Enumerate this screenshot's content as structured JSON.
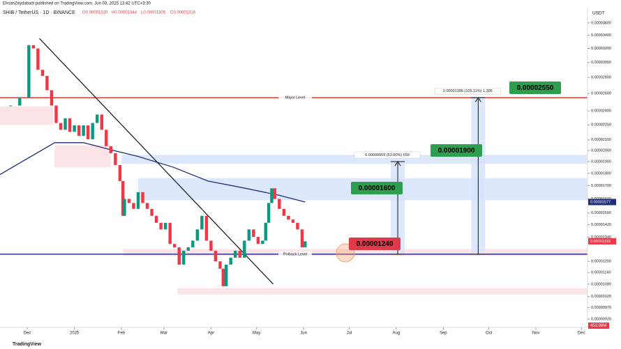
{
  "header": {
    "author_line": "EhsanZeydabadi published on TradingView.com, Jun 03, 2025 13:42 UTC+3:30"
  },
  "chart_data": {
    "type": "candlestick",
    "title": "SHIB / TetherUS · 1D · BINANCE",
    "ohlc": [
      "O0.00001320",
      "H0.00001344",
      "L0.00001305",
      "C0.00001316"
    ],
    "unit_label": "USDT",
    "log_scale": true,
    "up_color": "#089981",
    "down_color": "#f23645",
    "x": [
      0,
      6,
      12,
      15,
      18,
      21,
      24,
      27,
      30,
      33,
      36,
      39,
      42,
      45,
      48,
      51,
      54,
      57,
      60,
      63,
      66,
      69,
      72,
      74,
      75,
      78,
      81,
      84,
      87,
      90,
      93,
      96,
      99,
      102,
      105,
      108,
      111,
      114,
      117,
      120,
      123,
      126,
      129,
      132,
      135,
      138,
      140,
      142,
      145,
      148,
      151,
      154,
      157,
      160,
      163,
      166,
      168,
      170,
      172,
      174,
      177,
      180,
      183,
      186,
      189,
      192,
      194
    ],
    "close": [
      2.46e-05,
      2.55e-05,
      3.25e-05,
      3.2e-05,
      2.9e-05,
      2.82e-05,
      2.64e-05,
      2.46e-05,
      2.27e-05,
      2.2e-05,
      2.32e-05,
      2.18e-05,
      2.245e-05,
      2.14e-05,
      2.245e-05,
      2.106e-05,
      2.27e-05,
      2.36e-05,
      2.2e-05,
      2.04e-05,
      1.975e-05,
      1.87e-05,
      1.737e-05,
      1.48e-05,
      1.6e-05,
      1.57e-05,
      1.528e-05,
      1.65e-05,
      1.57e-05,
      1.528e-05,
      1.48e-05,
      1.433e-05,
      1.39e-05,
      1.433e-05,
      1.3e-05,
      1.28e-05,
      1.182e-05,
      1.26e-05,
      1.28e-05,
      1.32e-05,
      1.39e-05,
      1.48e-05,
      1.32e-05,
      1.26e-05,
      1.2e-05,
      1.16e-05,
      1.07e-05,
      1.182e-05,
      1.22e-05,
      1.26e-05,
      1.22e-05,
      1.32e-05,
      1.39e-05,
      1.343e-05,
      1.3e-05,
      1.32e-05,
      1.433e-05,
      1.57e-05,
      1.68e-05,
      1.6e-05,
      1.528e-05,
      1.48e-05,
      1.455e-05,
      1.433e-05,
      1.39e-05,
      1.28e-05,
      1.316e-05
    ],
    "xlim": [
      -7,
      380
    ],
    "xticks": [
      {
        "value": 11,
        "label": "Dec"
      },
      {
        "value": 42,
        "label": "2025"
      },
      {
        "value": 73,
        "label": "Feb"
      },
      {
        "value": 101,
        "label": "Mar"
      },
      {
        "value": 132,
        "label": "Apr"
      },
      {
        "value": 162,
        "label": "May"
      },
      {
        "value": 193,
        "label": "Jun"
      },
      {
        "value": 223,
        "label": "Jul"
      },
      {
        "value": 254,
        "label": "Aug"
      },
      {
        "value": 285,
        "label": "Sep"
      },
      {
        "value": 315,
        "label": "Oct"
      },
      {
        "value": 346,
        "label": "Nov"
      },
      {
        "value": 376,
        "label": "Dec"
      }
    ],
    "ylim": [
      8.85e-06,
      3.874e-05
    ],
    "yticks": [
      {
        "value": 3.6e-05,
        "label": "0.00003600"
      },
      {
        "value": 3.4e-05,
        "label": "0.00003400"
      },
      {
        "value": 3.2e-05,
        "label": "0.00003200"
      },
      {
        "value": 3e-05,
        "label": "0.00003000"
      },
      {
        "value": 2.8e-05,
        "label": "0.00002800"
      },
      {
        "value": 2.6e-05,
        "label": "0.00002600"
      },
      {
        "value": 2.4e-05,
        "label": "0.00002400"
      },
      {
        "value": 2.25e-05,
        "label": "0.00002250"
      },
      {
        "value": 2.1e-05,
        "label": "0.00002100"
      },
      {
        "value": 2e-05,
        "label": "0.00002000"
      },
      {
        "value": 1.9e-05,
        "label": "0.00001900"
      },
      {
        "value": 1.8e-05,
        "label": "0.00001800"
      },
      {
        "value": 1.7e-05,
        "label": "0.00001700"
      },
      {
        "value": 1.6e-05,
        "label": "0.00001600"
      },
      {
        "value": 1.5e-05,
        "label": "0.00001500"
      },
      {
        "value": 1.42e-05,
        "label": "0.00001420"
      },
      {
        "value": 1.34e-05,
        "label": "0.00001340"
      },
      {
        "value": 1.2e-05,
        "label": "0.00001200"
      },
      {
        "value": 1.14e-05,
        "label": "0.00001140"
      },
      {
        "value": 1.08e-05,
        "label": "0.00001080"
      },
      {
        "value": 1.02e-05,
        "label": "0.00001020"
      },
      {
        "value": 9.7e-06,
        "label": "0.00000970"
      },
      {
        "value": 9.2e-06,
        "label": "0.00000920"
      }
    ],
    "ma": {
      "color": "#1f2f7a",
      "x": [
        -7,
        29,
        48,
        66,
        84,
        107,
        130,
        153,
        176,
        194
      ],
      "values": [
        1.79e-05,
        2.073e-05,
        2.073e-05,
        2.006e-05,
        1.945e-05,
        1.852e-05,
        1.737e-05,
        1.684e-05,
        1.629e-05,
        1.577e-05
      ]
    },
    "trendline": {
      "color": "#111111",
      "x": [
        19,
        173
      ],
      "values": [
        3.35e-05,
        1.08e-05
      ]
    },
    "zones": [
      {
        "x": [
          73,
          380
        ],
        "range": [
          1.88e-05,
          1.96e-05
        ],
        "color": "#d6e2fb"
      },
      {
        "x": [
          84,
          380
        ],
        "range": [
          1.59e-05,
          1.76e-05
        ],
        "color": "#d6e2fb"
      },
      {
        "x": [
          -7,
          28
        ],
        "range": [
          2.25e-05,
          2.45e-05
        ],
        "color": "#fbdde0"
      },
      {
        "x": [
          29,
          66
        ],
        "range": [
          1.85e-05,
          2.05e-05
        ],
        "color": "#fbdde0"
      },
      {
        "x": [
          74,
          380
        ],
        "range": [
          1.23e-05,
          1.27e-05
        ],
        "color": "#fbdde0"
      },
      {
        "x": [
          110,
          380
        ],
        "range": [
          1.03e-05,
          1.06e-05
        ],
        "color": "#fbdde0"
      }
    ],
    "levels": [
      {
        "label": "Major Level",
        "value": 2.55e-05,
        "color": "#e53935"
      },
      {
        "label": "Polback Level",
        "value": 1.24e-05,
        "color": "#283593"
      }
    ],
    "measures": [
      {
        "label": "0.00000659 (53.00%) 659",
        "x": 255,
        "from": 1.24e-05,
        "to": 1.9e-05
      },
      {
        "label": "0.00001305 (105.11%) 1,305",
        "x": 308,
        "from": 1.24e-05,
        "to": 2.55e-05
      }
    ],
    "targets": [
      "0.00002550",
      "0.00001900",
      "0.00001600"
    ],
    "support_target": "0.00001240",
    "price_labels": [
      {
        "label": "0.00001577",
        "value": 1.577e-05,
        "color": "#1f2f7a"
      },
      {
        "label": "0.00001316",
        "value": 1.316e-05,
        "color": "#f23645"
      }
    ],
    "volume_label": "453.98M"
  },
  "footer": "TradingView"
}
